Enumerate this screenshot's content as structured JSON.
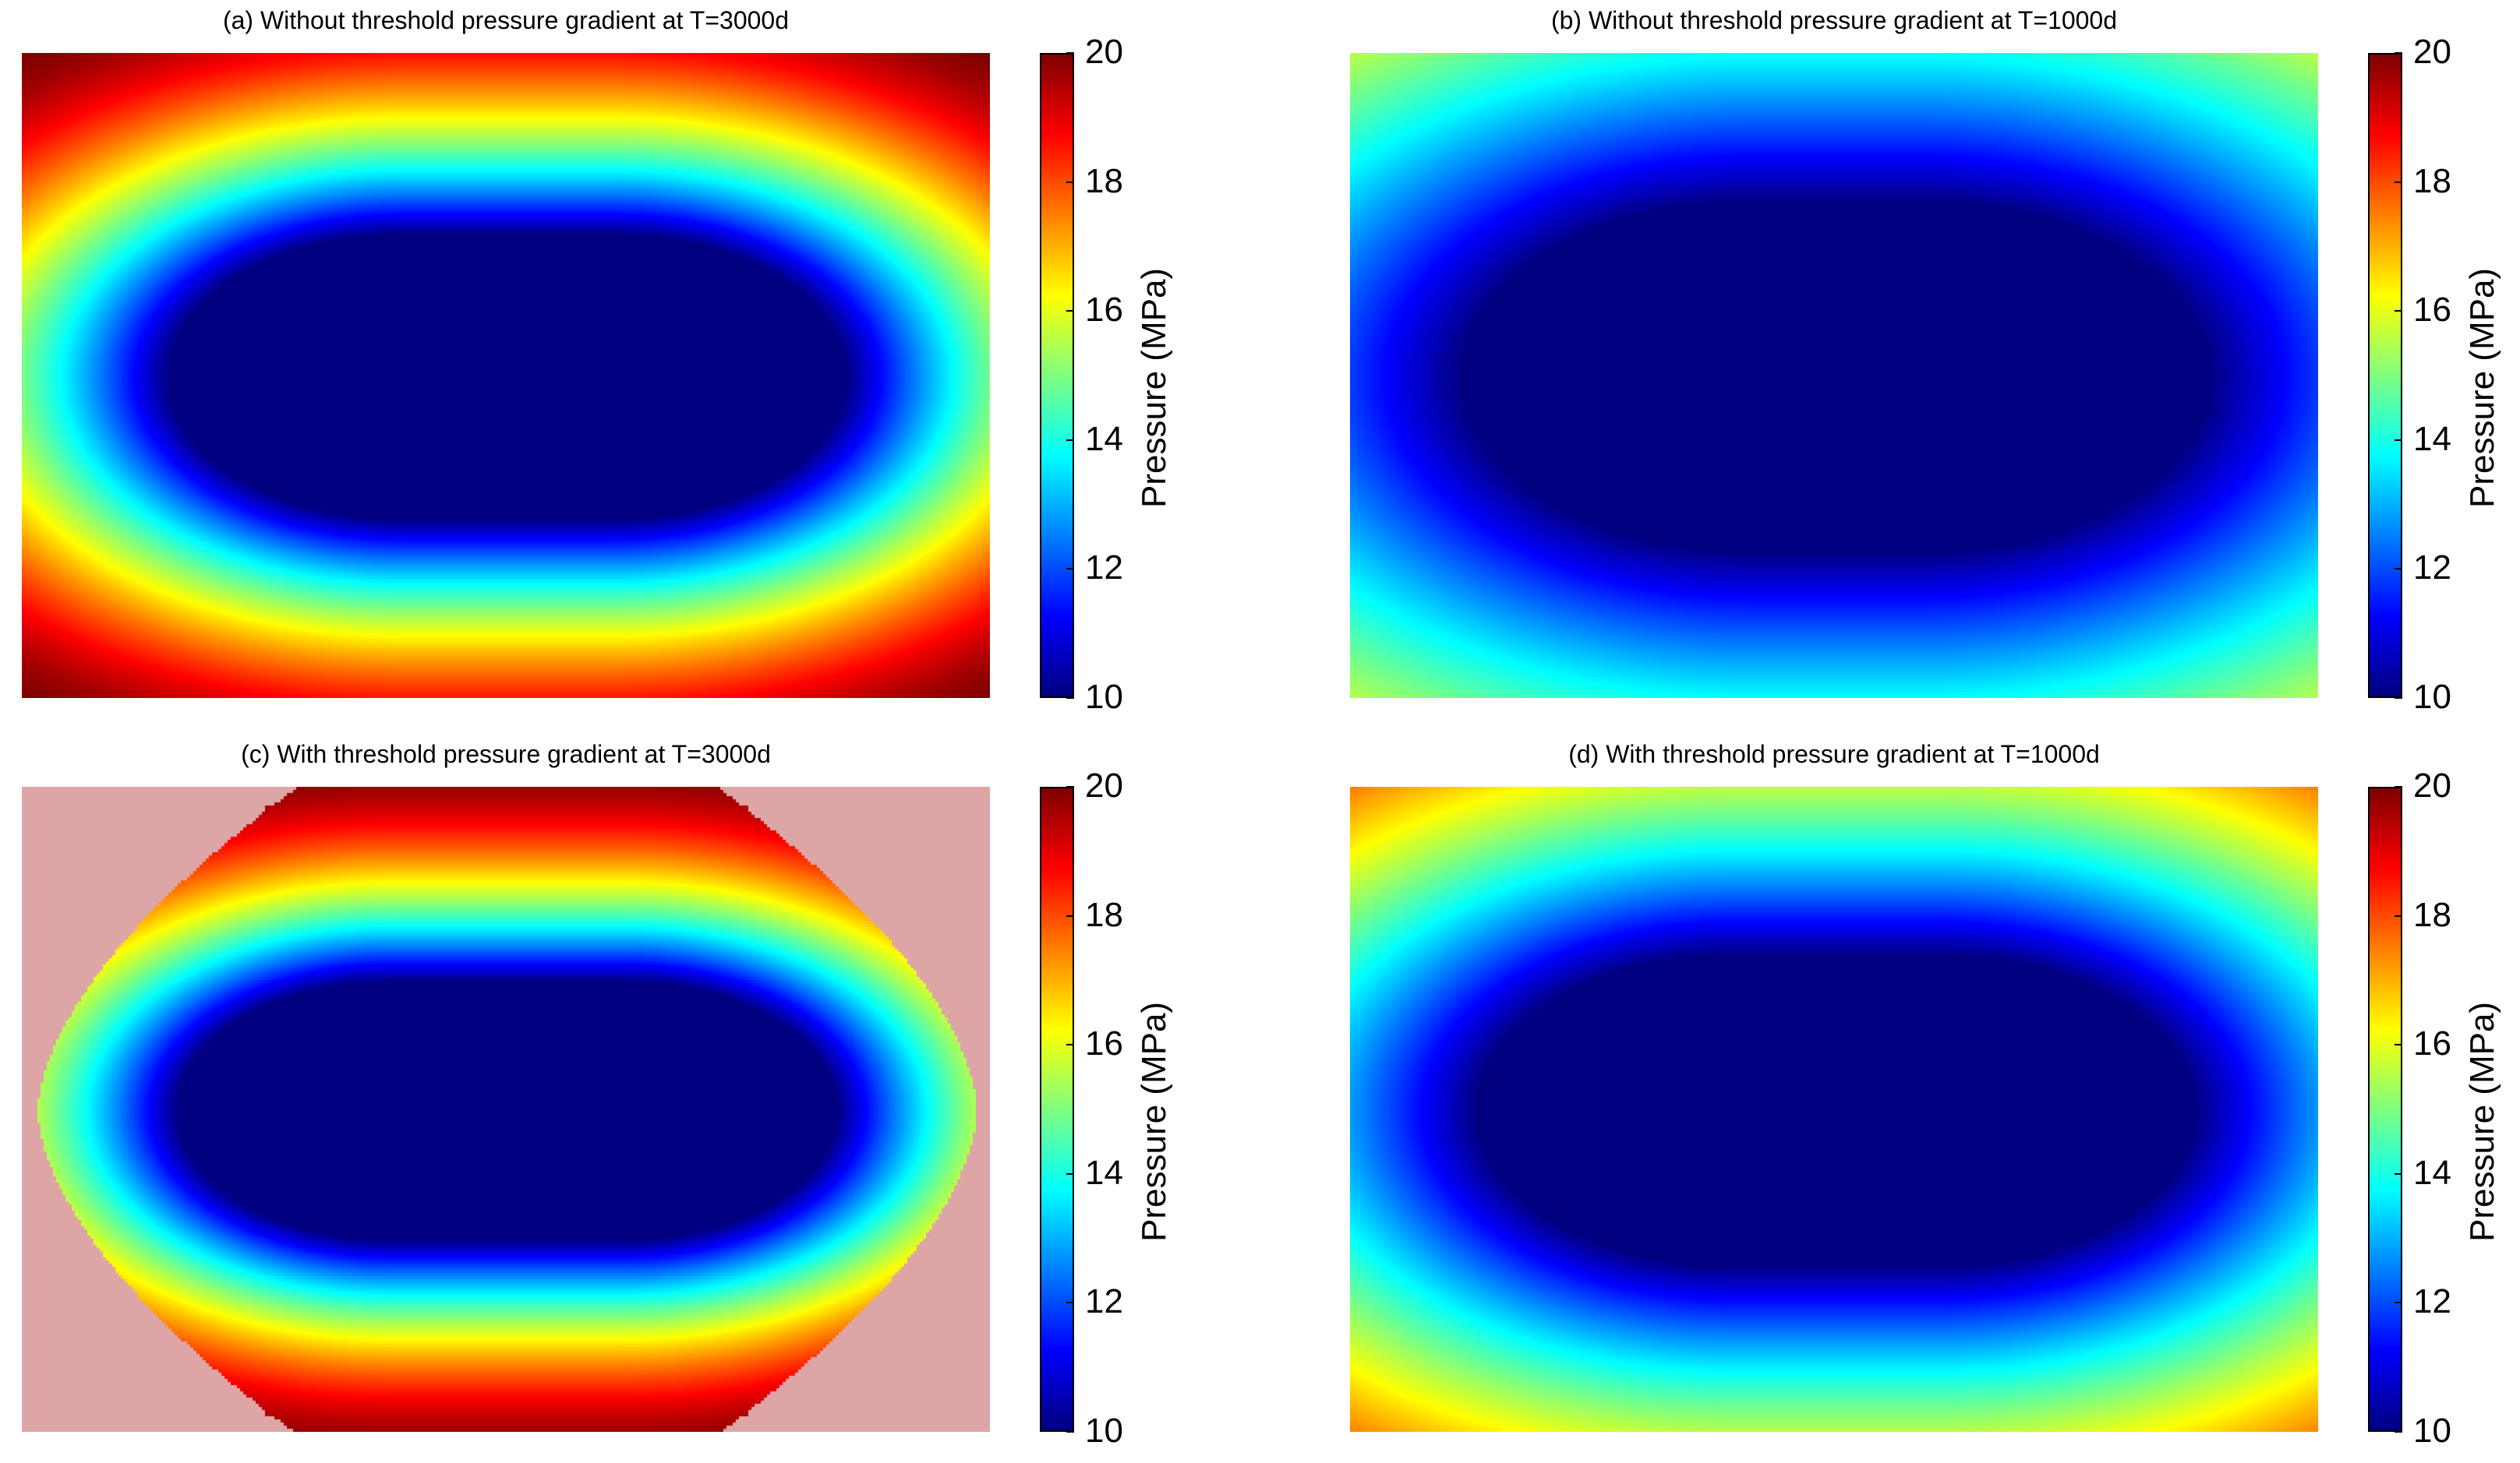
{
  "chart_data": [
    {
      "type": "heatmap",
      "title": "(a) Without threshold pressure gradient at T=3000d",
      "colorbar": {
        "label": "Pressure (MPa)",
        "range": [
          10,
          20
        ],
        "ticks": [
          "10",
          "12",
          "14",
          "16",
          "18",
          "20"
        ]
      },
      "colormap": "jet",
      "field": {
        "depleted_core_min": 10,
        "far_field": 20,
        "core_half_length_frac": 0.24,
        "core_half_width_frac": 0.22,
        "transition_width": 0.3,
        "far_field_blend": 0.0,
        "threshold_region": false
      }
    },
    {
      "type": "heatmap",
      "title": "(b) Without threshold pressure gradient at T=1000d",
      "colorbar": {
        "label": "Pressure (MPa)",
        "range": [
          10,
          20
        ],
        "ticks": [
          "10",
          "12",
          "14",
          "16",
          "18",
          "20"
        ]
      },
      "colormap": "jet",
      "field": {
        "depleted_core_min": 10,
        "far_field": 20,
        "core_half_length_frac": 0.25,
        "core_half_width_frac": 0.27,
        "transition_width": 0.55,
        "far_field_blend": 0.0,
        "threshold_region": false
      }
    },
    {
      "type": "heatmap",
      "title": "(c) With threshold pressure gradient at T=3000d",
      "colorbar": {
        "label": "Pressure (MPa)",
        "range": [
          10,
          20
        ],
        "ticks": [
          "10",
          "12",
          "14",
          "16",
          "18",
          "20"
        ]
      },
      "colormap": "jet",
      "field": {
        "depleted_core_min": 10,
        "far_field": 20,
        "core_half_length_frac": 0.24,
        "core_half_width_frac": 0.2,
        "transition_width": 0.28,
        "far_field_blend": 0.0,
        "threshold_region": true
      },
      "unaffected_region_color": "#dea5a6"
    },
    {
      "type": "heatmap",
      "title": "(d) With threshold pressure gradient at T=1000d",
      "colorbar": {
        "label": "Pressure (MPa)",
        "range": [
          10,
          20
        ],
        "ticks": [
          "10",
          "12",
          "14",
          "16",
          "18",
          "20"
        ]
      },
      "colormap": "jet",
      "field": {
        "depleted_core_min": 10,
        "far_field": 20,
        "core_half_length_frac": 0.25,
        "core_half_width_frac": 0.24,
        "transition_width": 0.45,
        "far_field_blend": 0.0,
        "threshold_region": false
      }
    }
  ]
}
